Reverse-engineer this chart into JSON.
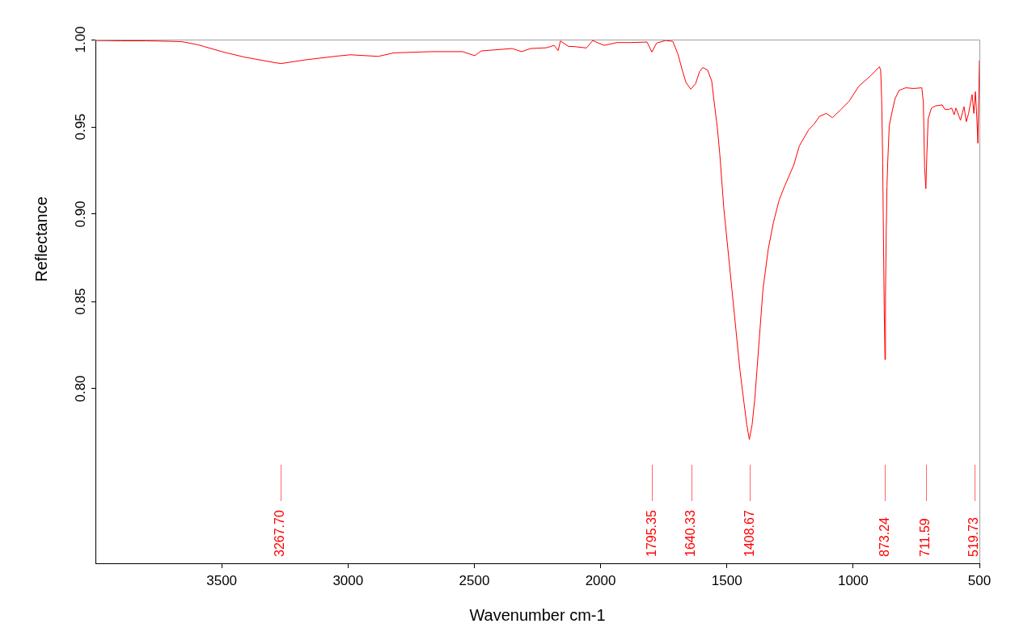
{
  "chart_data": {
    "type": "line",
    "xlabel": "Wavenumber cm-1",
    "ylabel": "Reflectance",
    "color": "#ff0000",
    "x": [
      4000,
      3900,
      3800,
      3700,
      3657,
      3593,
      3497,
      3411,
      3286,
      3264,
      3164,
      3040,
      2991,
      2880,
      2818,
      2671,
      2546,
      2498,
      2473,
      2350,
      2312,
      2277,
      2216,
      2205,
      2184,
      2168,
      2159,
      2127,
      2104,
      2056,
      2031,
      2008,
      1986,
      1935,
      1880,
      1816,
      1797,
      1778,
      1743,
      1714,
      1694,
      1678,
      1662,
      1643,
      1624,
      1608,
      1595,
      1576,
      1560,
      1550,
      1538,
      1528,
      1512,
      1496,
      1480,
      1464,
      1448,
      1432,
      1421,
      1411,
      1400,
      1389,
      1373,
      1357,
      1336,
      1315,
      1293,
      1272,
      1235,
      1213,
      1176,
      1155,
      1133,
      1106,
      1082,
      1048,
      1016,
      978,
      930,
      896,
      891,
      887,
      883,
      880,
      877,
      874,
      872,
      869,
      866,
      863,
      857,
      845,
      834,
      818,
      792,
      760,
      728,
      722,
      717,
      712,
      708,
      703,
      690,
      674,
      647,
      637,
      621,
      610,
      600,
      593,
      575,
      561,
      552,
      543,
      529,
      522,
      516,
      510,
      506,
      503,
      500
    ],
    "values": [
      0.9995,
      0.9993,
      0.9993,
      0.999,
      0.9988,
      0.997,
      0.993,
      0.99,
      0.9867,
      0.9863,
      0.9885,
      0.9906,
      0.9913,
      0.9904,
      0.9924,
      0.9931,
      0.9931,
      0.9908,
      0.9935,
      0.9949,
      0.9931,
      0.9949,
      0.9953,
      0.9957,
      0.9967,
      0.9937,
      0.9992,
      0.9961,
      0.996,
      0.9952,
      0.9995,
      0.998,
      0.9967,
      0.9983,
      0.9983,
      0.9986,
      0.9929,
      0.998,
      0.9995,
      0.999,
      0.9918,
      0.9833,
      0.9755,
      0.9716,
      0.9747,
      0.9817,
      0.984,
      0.9825,
      0.9763,
      0.9639,
      0.9499,
      0.9344,
      0.9034,
      0.8801,
      0.8569,
      0.8336,
      0.8104,
      0.7918,
      0.7794,
      0.7709,
      0.7794,
      0.7949,
      0.8259,
      0.8569,
      0.8801,
      0.8957,
      0.908,
      0.9158,
      0.9282,
      0.9391,
      0.9484,
      0.9515,
      0.9561,
      0.9577,
      0.9553,
      0.96,
      0.9647,
      0.9732,
      0.9794,
      0.9844,
      0.9825,
      0.9656,
      0.93,
      0.8865,
      0.846,
      0.8167,
      0.852,
      0.891,
      0.916,
      0.93,
      0.9507,
      0.9592,
      0.9662,
      0.9709,
      0.9724,
      0.972,
      0.9724,
      0.9639,
      0.9267,
      0.9146,
      0.9344,
      0.9546,
      0.9608,
      0.962,
      0.9626,
      0.96,
      0.96,
      0.9608,
      0.9569,
      0.9608,
      0.9538,
      0.9616,
      0.953,
      0.9577,
      0.9685,
      0.9577,
      0.9702,
      0.9546,
      0.9406,
      0.965,
      0.988
    ],
    "xlim": [
      4000,
      500
    ],
    "ylim": [
      0.7,
      1
    ],
    "xticks": [
      3500,
      3000,
      2500,
      2000,
      1500,
      1000,
      500
    ],
    "yticks": [
      {
        "value": 0.8,
        "label": "0.80"
      },
      0.85,
      {
        "value": 0.9,
        "label": "0.90"
      },
      0.95,
      {
        "value": 1,
        "label": "1.00"
      }
    ],
    "ref_lines": [
      {
        "axis": "x",
        "value": 3267.7,
        "label": "3267.70",
        "color": "#ff0000"
      },
      {
        "axis": "x",
        "value": 1795.35,
        "label": "1795.35",
        "color": "#ff0000"
      },
      {
        "axis": "x",
        "value": 1640.33,
        "label": "1640.33",
        "color": "#ff0000"
      },
      {
        "axis": "x",
        "value": 1408.67,
        "label": "1408.67",
        "color": "#ff0000"
      },
      {
        "axis": "x",
        "value": 873.24,
        "label": "873.24",
        "color": "#ff0000"
      },
      {
        "axis": "x",
        "value": 711.59,
        "label": "711.59",
        "color": "#ff0000"
      },
      {
        "axis": "x",
        "value": 519.73,
        "label": "519.73",
        "color": "#ff0000"
      }
    ]
  }
}
